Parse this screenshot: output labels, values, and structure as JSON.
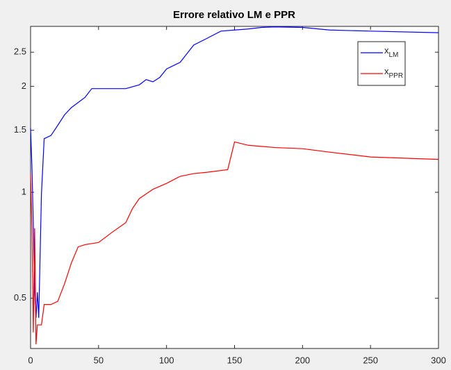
{
  "chart_data": {
    "type": "line",
    "title": "Errore relativo LM e PPR",
    "xlim": [
      0,
      300
    ],
    "xticks": [
      0,
      50,
      100,
      150,
      200,
      250,
      300
    ],
    "ylim": [
      0.36,
      2.96
    ],
    "yticks": [
      0.5,
      1,
      1.5,
      2,
      2.5
    ],
    "log_y": true,
    "grid": false,
    "legend": "northeast",
    "series": [
      {
        "name": "x_LM",
        "color": "#0000ff",
        "x": [
          0,
          1,
          2,
          3,
          4,
          5,
          6,
          8,
          10,
          15,
          20,
          25,
          30,
          40,
          45,
          50,
          60,
          70,
          80,
          85,
          90,
          95,
          100,
          110,
          120,
          130,
          140,
          150,
          160,
          170,
          180,
          200,
          220,
          250,
          300
        ],
        "values": [
          1.52,
          1.18,
          0.82,
          0.52,
          0.44,
          0.52,
          0.44,
          0.99,
          1.42,
          1.45,
          1.55,
          1.66,
          1.74,
          1.86,
          1.97,
          1.97,
          1.97,
          1.97,
          2.02,
          2.09,
          2.06,
          2.12,
          2.24,
          2.34,
          2.62,
          2.74,
          2.87,
          2.89,
          2.91,
          2.94,
          2.95,
          2.94,
          2.89,
          2.87,
          2.84
        ]
      },
      {
        "name": "x_PPR",
        "color": "#ff0000",
        "x": [
          0,
          1,
          2,
          3,
          4,
          5,
          8,
          10,
          15,
          20,
          25,
          30,
          35,
          40,
          50,
          60,
          70,
          75,
          80,
          90,
          100,
          110,
          120,
          130,
          145,
          150,
          160,
          180,
          200,
          220,
          250,
          300
        ],
        "values": [
          1.13,
          0.79,
          0.4,
          0.79,
          0.37,
          0.42,
          0.42,
          0.48,
          0.48,
          0.49,
          0.55,
          0.63,
          0.7,
          0.71,
          0.72,
          0.77,
          0.82,
          0.9,
          0.96,
          1.02,
          1.06,
          1.11,
          1.13,
          1.14,
          1.16,
          1.39,
          1.36,
          1.34,
          1.33,
          1.3,
          1.26,
          1.24
        ]
      }
    ]
  }
}
